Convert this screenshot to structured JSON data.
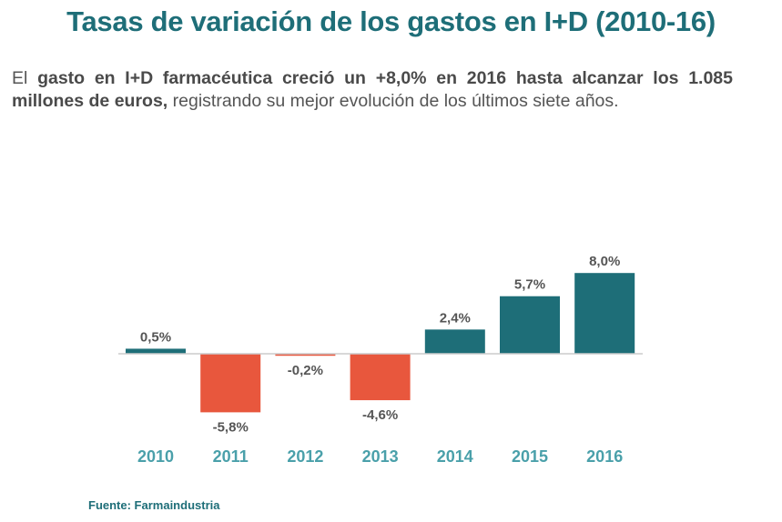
{
  "title": "Tasas de variación de los gastos en I+D (2010-16)",
  "subtitle": {
    "lead": "El",
    "bold": "gasto en I+D farmacéutica creció un +8,0% en 2016 hasta alcanzar los 1.085 millones de euros,",
    "rest": "registrando su mejor evolución de los últimos siete años."
  },
  "source": "Fuente: Farmaindustria",
  "colors": {
    "positive": "#1e6e78",
    "negative": "#e8573d",
    "axis": "#cccccc"
  },
  "chart_data": {
    "type": "bar",
    "categories": [
      "2010",
      "2011",
      "2012",
      "2013",
      "2014",
      "2015",
      "2016"
    ],
    "values": [
      0.5,
      -5.8,
      -0.2,
      -4.6,
      2.4,
      5.7,
      8.0
    ],
    "labels": [
      "0,5%",
      "-5,8%",
      "-0,2%",
      "-4,6%",
      "2,4%",
      "5,7%",
      "8,0%"
    ],
    "ylim": [
      -6,
      8
    ]
  }
}
